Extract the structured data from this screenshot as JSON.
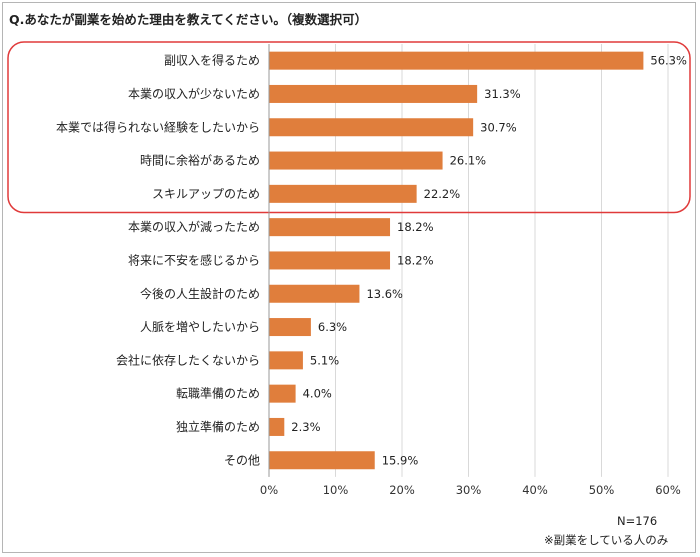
{
  "title": "Q.あなたが副業を始めた理由を教えてください。（複数選択可）",
  "note_n": "N=176",
  "note_scope": "※副業をしている人のみ",
  "colors": {
    "bar": "#E07E3C",
    "highlight": "#E03A3A",
    "grid": "#D9D9D9"
  },
  "chart_data": {
    "type": "bar",
    "orientation": "horizontal",
    "categories": [
      "副収入を得るため",
      "本業の収入が少ないため",
      "本業では得られない経験をしたいから",
      "時間に余裕があるため",
      "スキルアップのため",
      "本業の収入が減ったため",
      "将来に不安を感じるから",
      "今後の人生設計のため",
      "人脈を増やしたいから",
      "会社に依存したくないから",
      "転職準備のため",
      "独立準備のため",
      "その他"
    ],
    "values": [
      56.3,
      31.3,
      30.7,
      26.1,
      22.2,
      18.2,
      18.2,
      13.6,
      6.3,
      5.1,
      4.0,
      2.3,
      15.9
    ],
    "value_labels": [
      "56.3%",
      "31.3%",
      "30.7%",
      "26.1%",
      "22.2%",
      "18.2%",
      "18.2%",
      "13.6%",
      "6.3%",
      "5.1%",
      "4.0%",
      "2.3%",
      "15.9%"
    ],
    "xlim": [
      0,
      60
    ],
    "xticks": [
      0,
      10,
      20,
      30,
      40,
      50,
      60
    ],
    "xtick_labels": [
      "0%",
      "10%",
      "20%",
      "30%",
      "40%",
      "50%",
      "60%"
    ],
    "grid": true,
    "highlighted_categories": [
      0,
      1,
      2,
      3,
      4
    ]
  }
}
